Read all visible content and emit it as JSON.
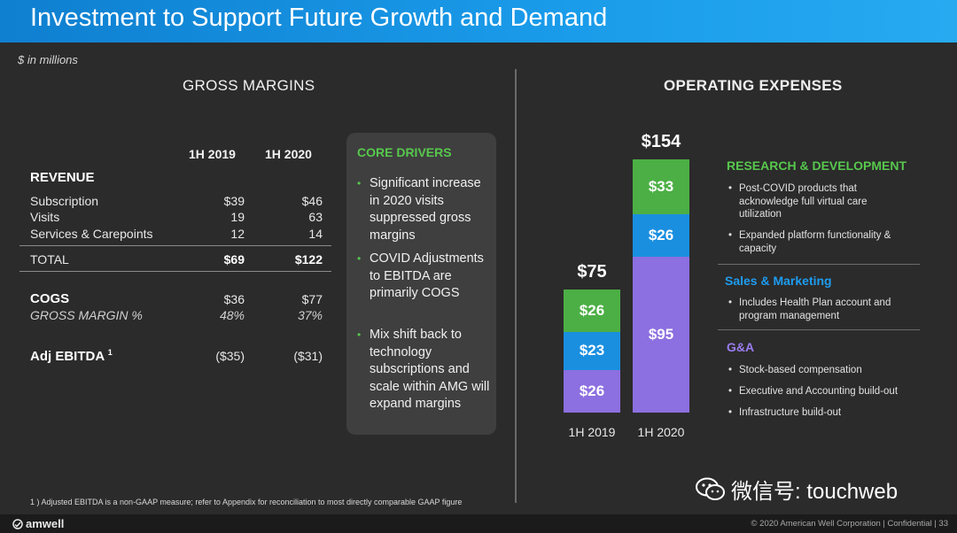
{
  "header": {
    "title": "Investment to Support Future Growth and Demand"
  },
  "units": "$ in millions",
  "gross_margins": {
    "heading": "GROSS MARGINS",
    "columns": [
      "1H 2019",
      "1H 2020"
    ],
    "revenue_label": "REVENUE",
    "rows": [
      {
        "label": "Subscription",
        "v2019": "$39",
        "v2020": "$46"
      },
      {
        "label": "Visits",
        "v2019": "19",
        "v2020": "63"
      },
      {
        "label": "Services & Carepoints",
        "v2019": "12",
        "v2020": "14"
      }
    ],
    "total": {
      "label": "TOTAL",
      "v2019": "$69",
      "v2020": "$122"
    },
    "cogs": {
      "label": "COGS",
      "v2019": "$36",
      "v2020": "$77"
    },
    "gross_margin_pct": {
      "label": "GROSS MARGIN %",
      "v2019": "48%",
      "v2020": "37%"
    },
    "adj_ebitda": {
      "label": "Adj EBITDA",
      "footnote_mark": "1",
      "v2019": "($35)",
      "v2020": "($31)"
    }
  },
  "core_drivers": {
    "title": "CORE DRIVERS",
    "items": [
      "Significant increase in 2020 visits suppressed gross margins",
      "COVID Adjustments to EBITDA are primarily COGS",
      "Mix shift back to technology subscriptions and scale within AMG will expand margins"
    ]
  },
  "operating_expenses": {
    "heading": "OPERATING EXPENSES"
  },
  "chart_data": {
    "type": "bar",
    "stacked": true,
    "categories": [
      "1H 2019",
      "1H 2020"
    ],
    "totals": [
      75,
      154
    ],
    "total_labels": [
      "$75",
      "$154"
    ],
    "series": [
      {
        "name": "G&A",
        "values": [
          26,
          95
        ],
        "labels": [
          "$26",
          "$95"
        ],
        "color": "#8c6fe0"
      },
      {
        "name": "Sales & Marketing",
        "values": [
          23,
          26
        ],
        "labels": [
          "$23",
          "$26"
        ],
        "color": "#1a8fe0"
      },
      {
        "name": "RESEARCH & DEVELOPMENT",
        "values": [
          26,
          33
        ],
        "labels": [
          "$26",
          "$33"
        ],
        "color": "#4caf45"
      }
    ]
  },
  "categories": {
    "rnd": {
      "title": "RESEARCH & DEVELOPMENT",
      "color": "#57c84d",
      "items": [
        "Post-COVID products that acknowledge full virtual care utilization",
        "Expanded platform functionality & capacity"
      ]
    },
    "sales": {
      "title": "Sales & Marketing",
      "color": "#1e9cf0",
      "items": [
        "Includes Health Plan account and program management"
      ]
    },
    "ga": {
      "title": "G&A",
      "color": "#9a7cf0",
      "items": [
        "Stock-based compensation",
        "Executive and Accounting build-out",
        "Infrastructure build-out"
      ]
    }
  },
  "footnote": "1 ) Adjusted EBITDA is a non-GAAP measure; refer to Appendix for reconciliation to most directly comparable GAAP figure",
  "watermark": {
    "text": "微信号: touchweb"
  },
  "footer": {
    "logo": "amwell",
    "copyright": "© 2020  American Well Corporation  |  Confidential  |     33"
  }
}
